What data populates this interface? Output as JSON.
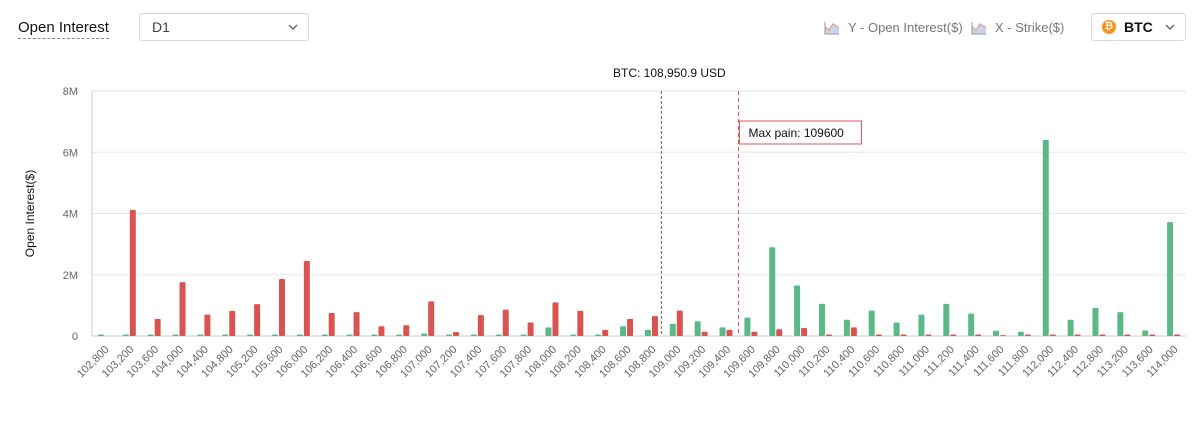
{
  "header": {
    "title": "Open Interest",
    "period": "D1",
    "legend": [
      {
        "label": "Y - Open Interest($)",
        "icon": "area-chart-icon"
      },
      {
        "label": "X - Strike($)",
        "icon": "area-chart-icon"
      }
    ],
    "asset": "BTC",
    "asset_icon_glyph": "₿"
  },
  "chart_data": {
    "type": "bar",
    "ylabel": "Open Interest($)",
    "ylim": [
      0,
      8000000
    ],
    "yticks": [
      {
        "value": 0,
        "label": "0"
      },
      {
        "value": 2000000,
        "label": "2M"
      },
      {
        "value": 4000000,
        "label": "4M"
      },
      {
        "value": 6000000,
        "label": "6M"
      },
      {
        "value": 8000000,
        "label": "8M"
      }
    ],
    "grid": true,
    "categories": [
      "102,800",
      "103,200",
      "103,600",
      "104,000",
      "104,400",
      "104,800",
      "105,200",
      "105,600",
      "106,000",
      "106,200",
      "106,400",
      "106,600",
      "106,800",
      "107,000",
      "107,200",
      "107,400",
      "107,600",
      "107,800",
      "108,000",
      "108,200",
      "108,400",
      "108,600",
      "108,800",
      "109,000",
      "109,200",
      "109,400",
      "109,600",
      "109,800",
      "110,000",
      "110,200",
      "110,400",
      "110,600",
      "110,800",
      "111,000",
      "111,200",
      "111,400",
      "111,600",
      "111,800",
      "112,000",
      "112,400",
      "112,800",
      "113,200",
      "113,600",
      "114,000"
    ],
    "series": [
      {
        "color": "#5bb987",
        "values": [
          0.05,
          0.05,
          0.05,
          0.05,
          0.05,
          0.05,
          0.05,
          0.05,
          0.05,
          0.05,
          0.05,
          0.05,
          0.05,
          0.08,
          0.05,
          0.05,
          0.05,
          0.05,
          0.28,
          0.05,
          0.05,
          0.32,
          0.2,
          0.4,
          0.48,
          0.28,
          0.6,
          2.9,
          1.65,
          1.05,
          0.53,
          0.83,
          0.44,
          0.7,
          1.05,
          0.73,
          0.17,
          0.14,
          6.4,
          0.53,
          0.92,
          0.78,
          0.18,
          3.72
        ]
      },
      {
        "color": "#d9534f",
        "values": [
          0,
          4.12,
          0.56,
          1.76,
          0.7,
          0.82,
          1.04,
          1.86,
          2.45,
          0.75,
          0.78,
          0.32,
          0.35,
          1.13,
          0.13,
          0.68,
          0.86,
          0.44,
          1.1,
          0.82,
          0.2,
          0.56,
          0.65,
          0.83,
          0.14,
          0.2,
          0.14,
          0.22,
          0.26,
          0.05,
          0.28,
          0.05,
          0.05,
          0.05,
          0.05,
          0.05,
          0.03,
          0.05,
          0.05,
          0.05,
          0.05,
          0.05,
          0.05,
          0.05
        ]
      }
    ],
    "values_unit": "M",
    "markers": [
      {
        "label": "BTC: 108,950.9 USD",
        "category_position": 22.9,
        "color": "#666666"
      },
      {
        "label": "Max pain: 109600",
        "category_position": 26.0,
        "color": "#e05555"
      }
    ]
  }
}
